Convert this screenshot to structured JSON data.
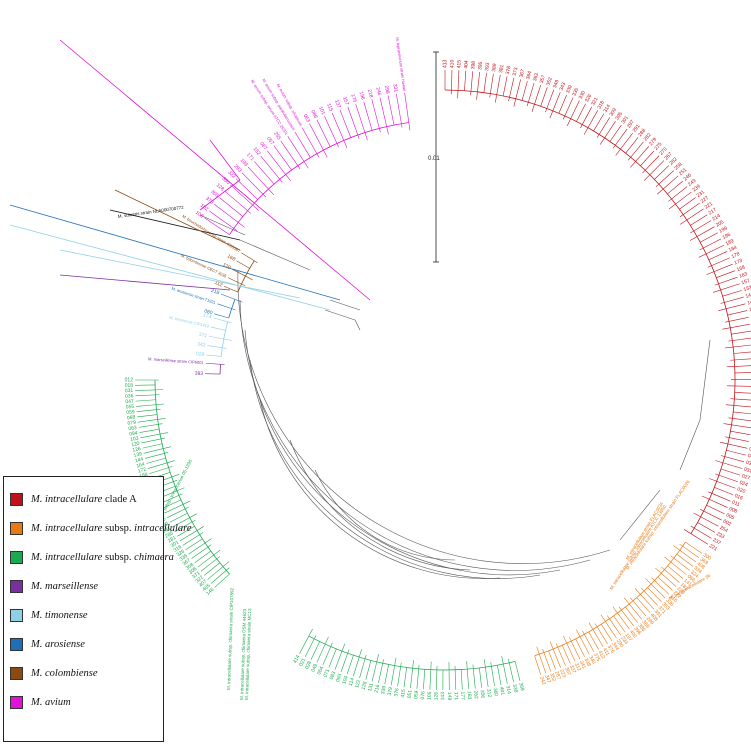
{
  "scale_bar": {
    "label": "0.01"
  },
  "legend": {
    "items": [
      {
        "species": "M. intracellulare",
        "rest": " clade A",
        "color": "#c0121a"
      },
      {
        "species": "M. intracellulare",
        "rest": " subsp. ",
        "subsp": "intracellulare",
        "color": "#e87a14"
      },
      {
        "species": "M. intracellulare",
        "rest": " subsp. ",
        "subsp": "chimaera",
        "color": "#1aaa4e"
      },
      {
        "species": "M. marseillense",
        "rest": "",
        "color": "#7a2fa0"
      },
      {
        "species": "M. timonense",
        "rest": "",
        "color": "#8fd0e6"
      },
      {
        "species": "M. arosiense",
        "rest": "",
        "color": "#1f6fb8"
      },
      {
        "species": "M. colombiense",
        "rest": "",
        "color": "#8a4a12"
      },
      {
        "species": "M. avium",
        "rest": "",
        "color": "#e012d8"
      }
    ]
  },
  "clades": [
    {
      "name": "clade-a",
      "color": "#c0121a",
      "start_deg": -90,
      "end_deg": 32,
      "count": 96,
      "tips": [
        "413",
        "410",
        "415",
        "404",
        "398",
        "395",
        "393",
        "389",
        "381",
        "378",
        "373",
        "367",
        "364",
        "363",
        "357",
        "352",
        "349",
        "343",
        "339",
        "335",
        "330",
        "326",
        "321",
        "318",
        "314",
        "309",
        "305",
        "301",
        "297",
        "291",
        "288",
        "282",
        "279",
        "275",
        "270",
        "267",
        "262",
        "258",
        "251",
        "246",
        "243",
        "239",
        "231",
        "227",
        "221",
        "217",
        "214",
        "205",
        "199",
        "196",
        "189",
        "184",
        "178",
        "173",
        "168",
        "163",
        "157",
        "153",
        "149",
        "145",
        "140",
        "135",
        "130",
        "124",
        "120",
        "117",
        "113",
        "109",
        "104",
        "099",
        "094",
        "088",
        "082",
        "077",
        "073",
        "069",
        "063",
        "058",
        "052",
        "049",
        "046",
        "042",
        "035",
        "031",
        "027",
        "024",
        "020",
        "016",
        "011",
        "008",
        "005",
        "002",
        "254",
        "233",
        "237",
        "221"
      ]
    },
    {
      "name": "subsp-intracellulare",
      "color": "#e87a14",
      "start_deg": 34,
      "end_deg": 72,
      "count": 40,
      "tips": [
        "300",
        "369",
        "408",
        "334",
        "324",
        "066",
        "141",
        "181",
        "220",
        "272",
        "316",
        "336",
        "353",
        "371",
        "391",
        "408",
        "299",
        "369",
        "386",
        "396",
        "400",
        "197",
        "234",
        "290",
        "344",
        "376",
        "411",
        "412",
        "375",
        "340",
        "338",
        "341",
        "312",
        "337",
        "307",
        "223",
        "287",
        "352",
        "347",
        "242"
      ]
    },
    {
      "name": "subsp-chimaera-lower",
      "color": "#1aaa4e",
      "start_deg": 76,
      "end_deg": 118,
      "count": 36,
      "tips": [
        "368",
        "338",
        "314",
        "401",
        "360",
        "312",
        "356",
        "262",
        "183",
        "177",
        "171",
        "149",
        "143",
        "126",
        "105",
        "076",
        "059",
        "051",
        "415",
        "376",
        "379",
        "339",
        "216",
        "131",
        "128",
        "122",
        "114",
        "104",
        "093",
        "083",
        "071",
        "064",
        "049",
        "028",
        "021",
        "414"
      ]
    },
    {
      "name": "subsp-chimaera-upper",
      "color": "#1aaa4e",
      "start_deg": 138,
      "end_deg": 180,
      "count": 44,
      "tips": [
        "146",
        "405",
        "407",
        "322",
        "371",
        "306",
        "358",
        "367",
        "336",
        "326",
        "316",
        "301",
        "281",
        "285",
        "271",
        "270",
        "265",
        "245",
        "240",
        "236",
        "227",
        "224",
        "212",
        "208",
        "197",
        "188",
        "172",
        "164",
        "144",
        "139",
        "126",
        "120",
        "103",
        "094",
        "083",
        "079",
        "068",
        "059",
        "055",
        "047",
        "036",
        "031",
        "018",
        "012"
      ]
    },
    {
      "name": "marseillense",
      "color": "#7a2fa0",
      "start_deg": 181.5,
      "end_deg": 184,
      "count": 2,
      "tips": [
        "393",
        "M. marseillense strain CIP6001"
      ]
    },
    {
      "name": "timonense",
      "color": "#8fd0e6",
      "start_deg": 186,
      "end_deg": 195,
      "count": 5,
      "tips": [
        "029",
        "342",
        "371",
        "M. timonense CIP1419",
        "174"
      ]
    },
    {
      "name": "arosiense",
      "color": "#1f6fb8",
      "start_deg": 196,
      "end_deg": 201,
      "count": 3,
      "tips": [
        "080",
        "M. arosiense strain T1921",
        "218"
      ]
    },
    {
      "name": "colombiense",
      "color": "#8a4a12",
      "start_deg": 203,
      "end_deg": 212,
      "count": 5,
      "tips": [
        "112",
        "M. colombiense CECT 3035",
        "129",
        "168",
        "M. bouchedurhonense strain 4355387"
      ]
    },
    {
      "name": "avium",
      "color": "#e012d8",
      "start_deg": 214,
      "end_deg": 262,
      "count": 30,
      "tips": [
        "108",
        "102",
        "370",
        "305",
        "128",
        "350",
        "322",
        "293",
        "199",
        "171",
        "152",
        "087",
        "057",
        "255",
        "M. avium subsp. avium ATCC 25291",
        "M. avium subsp. paratuberculosis",
        "M. avium subsp. silvaticum",
        "063",
        "086",
        "101",
        "115",
        "137",
        "157",
        "176",
        "196",
        "218",
        "246",
        "298",
        "331",
        "M. lepraemurium strain Hawaii"
      ]
    }
  ],
  "notes": [
    {
      "text": "M. intracellulare subsp. intracellulare ATCC 13950",
      "color": "#e87a14"
    },
    {
      "text": "M. intracellulare subsp. chimaera DSM 44623",
      "color": "#1aaa4e"
    },
    {
      "text": "M. intracellulare subsp. yongonense 05-1390",
      "color": "#1aaa4e"
    },
    {
      "text": "M. vulneris strain NLA000700772",
      "color": "#111111"
    },
    {
      "text": "M. intracellulare subsp. chimaera strain CIP107892",
      "color": "#1aaa4e"
    },
    {
      "text": "M. intracellulare subsp. chimaera strain MC13",
      "color": "#1aaa4e"
    },
    {
      "text": "M. intracellulare strain FLAC0034",
      "color": "#e87a14"
    },
    {
      "text": "M. intracellulare subsp. intracellulare strain FLAC0026",
      "color": "#e87a14"
    },
    {
      "text": "M. paraintracellulare 36",
      "color": "#e87a14"
    }
  ]
}
